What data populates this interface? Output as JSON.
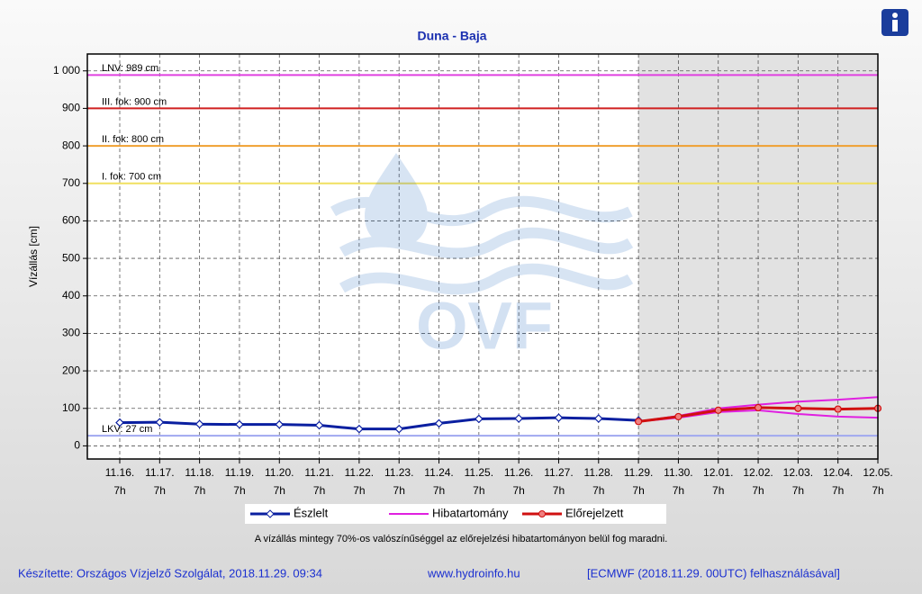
{
  "chart_data": {
    "type": "line",
    "title": "Duna - Baja",
    "y_label": "Vízállás [cm]",
    "categories": [
      "11.16.",
      "11.17.",
      "11.18.",
      "11.19.",
      "11.20.",
      "11.21.",
      "11.22.",
      "11.23.",
      "11.24.",
      "11.25.",
      "11.26.",
      "11.27.",
      "11.28.",
      "11.29.",
      "11.30.",
      "12.01.",
      "12.02.",
      "12.03.",
      "12.04.",
      "12.05."
    ],
    "category_times": [
      "7h",
      "7h",
      "7h",
      "7h",
      "7h",
      "7h",
      "7h",
      "7h",
      "7h",
      "7h",
      "7h",
      "7h",
      "7h",
      "7h",
      "7h",
      "7h",
      "7h",
      "7h",
      "7h",
      "7h"
    ],
    "ylim": [
      -35,
      1045
    ],
    "yticks": [
      0,
      100,
      200,
      300,
      400,
      500,
      600,
      700,
      800,
      900,
      {
        "value": 1000,
        "label": "1 000"
      }
    ],
    "grid": true,
    "thresholds": [
      {
        "value": 989,
        "label": "LNV: 989 cm",
        "color": "#e040e0"
      },
      {
        "value": 900,
        "label": "III. fok: 900 cm",
        "color": "#d02020"
      },
      {
        "value": 800,
        "label": "II. fok: 800 cm",
        "color": "#f0a030"
      },
      {
        "value": 700,
        "label": "I. fok: 700 cm",
        "color": "#f0e060"
      },
      {
        "value": 27,
        "label": "LKV: 27 cm",
        "color": "#a0a8f0"
      }
    ],
    "series": [
      {
        "name": "Észlelt",
        "color": "#0a1fa0",
        "values": [
          62,
          63,
          58,
          57,
          57,
          55,
          45,
          45,
          60,
          72,
          73,
          75,
          73,
          68,
          null,
          null,
          null,
          null,
          null,
          null
        ]
      },
      {
        "name": "Hibatartomány",
        "color": "#e020e0",
        "values": [
          null,
          null,
          null,
          null,
          null,
          null,
          null,
          null,
          null,
          null,
          null,
          null,
          null,
          65,
          80,
          100,
          110,
          118,
          123,
          130
        ],
        "lower": [
          null,
          null,
          null,
          null,
          null,
          null,
          null,
          null,
          null,
          null,
          null,
          null,
          null,
          65,
          75,
          90,
          95,
          85,
          78,
          75
        ]
      },
      {
        "name": "Előrejelzett",
        "color": "#d01010",
        "values": [
          null,
          null,
          null,
          null,
          null,
          null,
          null,
          null,
          null,
          null,
          null,
          null,
          null,
          65,
          78,
          95,
          102,
          100,
          98,
          100
        ]
      }
    ],
    "watermark": "OVF",
    "note": "A vízállás mintegy 70%-os valószínűséggel az előrejelzési hibatartományon belül fog maradni.",
    "footer": [
      "Készítette: Országos Vízjelző Szolgálat, 2018.11.29. 09:34",
      "www.hydroinfo.hu",
      "[ECMWF (2018.11.29. 00UTC) felhasználásával]"
    ]
  }
}
